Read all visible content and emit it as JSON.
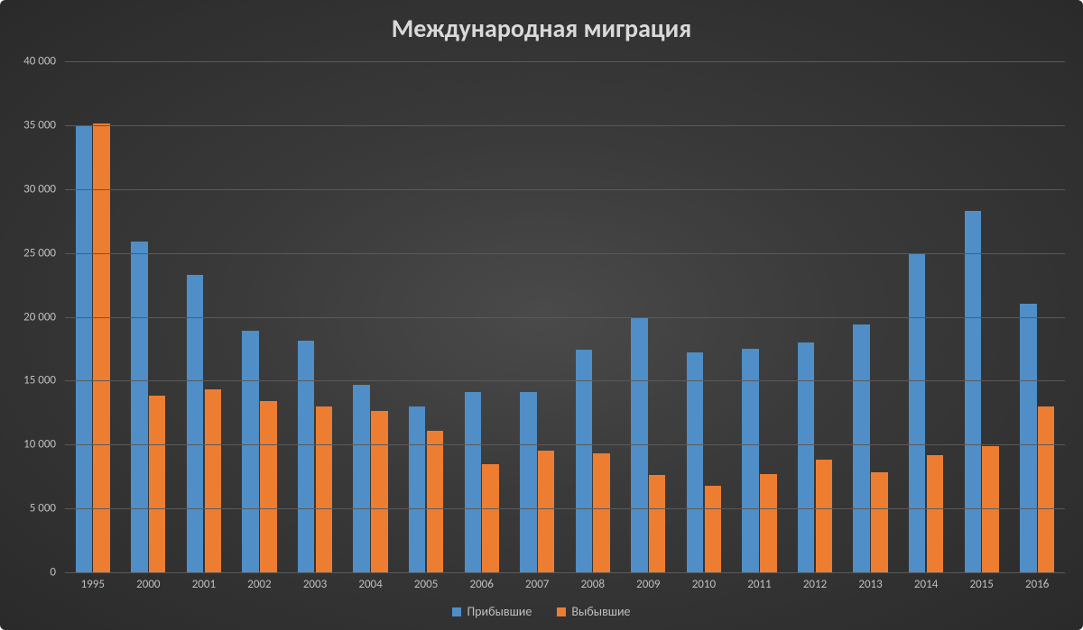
{
  "chart": {
    "type": "bar",
    "title": "Международная миграция",
    "title_fontsize": 28,
    "title_color": "#d9d9d9",
    "background_gradient": [
      "#4a4a4a",
      "#2a2a2a"
    ],
    "grid_color": "#5a5a5a",
    "axis_label_color": "#bfbfbf",
    "axis_fontsize": 13,
    "ylim": [
      0,
      40000
    ],
    "ytick_step": 5000,
    "ytick_labels": [
      "0",
      "5 000",
      "10 000",
      "15 000",
      "20 000",
      "25 000",
      "30 000",
      "35 000",
      "40 000"
    ],
    "categories": [
      "1995",
      "2000",
      "2001",
      "2002",
      "2003",
      "2004",
      "2005",
      "2006",
      "2007",
      "2008",
      "2009",
      "2010",
      "2011",
      "2012",
      "2013",
      "2014",
      "2015",
      "2016"
    ],
    "bar_width_ratio": 0.3,
    "bar_gap_ratio": 0.02,
    "series": [
      {
        "name": "Прибывшие",
        "color": "#4f8ec6",
        "values": [
          34900,
          25900,
          23300,
          18900,
          18100,
          14700,
          13000,
          14100,
          14100,
          17400,
          19900,
          17200,
          17500,
          18000,
          19400,
          25000,
          28300,
          21000
        ]
      },
      {
        "name": "Выбывшие",
        "color": "#ed7d31",
        "values": [
          35100,
          13800,
          14300,
          13400,
          13000,
          12600,
          11100,
          8500,
          9500,
          9300,
          7600,
          6800,
          7700,
          8800,
          7800,
          9200,
          9900,
          13000
        ]
      }
    ],
    "legend_fontsize": 14
  }
}
